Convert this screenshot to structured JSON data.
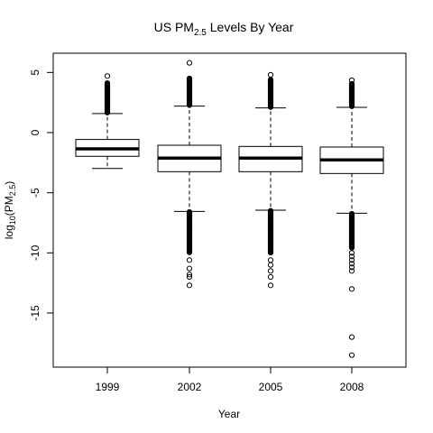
{
  "chart_data": {
    "type": "box",
    "title_base": "US PM",
    "title_sub": "2.5",
    "title_suffix": " Levels By Year",
    "xlabel": "Year",
    "ylabel_base": "log",
    "ylabel_sub1": "10",
    "ylabel_mid": "(PM",
    "ylabel_sub2": "2.5",
    "ylabel_end": ")",
    "ylim": [
      -19.5,
      6.6
    ],
    "yticks": [
      5,
      0,
      -5,
      -10,
      -15
    ],
    "categories": [
      "1999",
      "2002",
      "2005",
      "2008"
    ],
    "boxes": [
      {
        "category": "1999",
        "whisker_low": -2.98,
        "q1": -1.97,
        "median": -1.35,
        "q3": -0.57,
        "whisker_high": 1.58,
        "outliers_high_dense": [
          1.62,
          4.12
        ],
        "outliers_low_dense": [],
        "outliers": [
          4.7
        ]
      },
      {
        "category": "2002",
        "whisker_low": -6.55,
        "q1": -3.25,
        "median": -2.12,
        "q3": -1.05,
        "whisker_high": 2.2,
        "outliers_high_dense": [
          2.25,
          4.5
        ],
        "outliers_low_dense": [
          -6.6,
          -10.0
        ],
        "outliers": [
          5.8,
          -10.6,
          -11.3,
          -11.8,
          -12.0,
          -12.7
        ]
      },
      {
        "category": "2005",
        "whisker_low": -6.45,
        "q1": -3.25,
        "median": -2.12,
        "q3": -1.15,
        "whisker_high": 2.05,
        "outliers_high_dense": [
          2.1,
          4.4
        ],
        "outliers_low_dense": [
          -6.5,
          -10.0
        ],
        "outliers": [
          4.8,
          -10.6,
          -11.0,
          -11.5,
          -12.0,
          -12.7
        ]
      },
      {
        "category": "2008",
        "whisker_low": -6.7,
        "q1": -3.4,
        "median": -2.27,
        "q3": -1.2,
        "whisker_high": 2.1,
        "outliers_high_dense": [
          2.15,
          4.05
        ],
        "outliers_low_dense": [
          -6.75,
          -9.6
        ],
        "outliers": [
          4.35,
          -10.0,
          -10.3,
          -10.6,
          -10.9,
          -11.2,
          -11.5,
          -13.0,
          -17.0,
          -18.5
        ]
      }
    ],
    "grid": false,
    "legend": "none"
  }
}
